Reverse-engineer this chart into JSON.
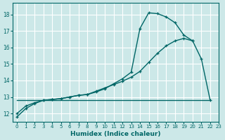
{
  "xlabel": "Humidex (Indice chaleur)",
  "background_color": "#cce8e8",
  "grid_color": "#ffffff",
  "line_color": "#006666",
  "xlim": [
    -0.5,
    23
  ],
  "ylim": [
    11.5,
    18.7
  ],
  "xticks": [
    0,
    1,
    2,
    3,
    4,
    5,
    6,
    7,
    8,
    9,
    10,
    11,
    12,
    13,
    14,
    15,
    16,
    17,
    18,
    19,
    20,
    21,
    22,
    23
  ],
  "yticks": [
    12,
    13,
    14,
    15,
    16,
    17,
    18
  ],
  "series1_x": [
    0,
    1,
    2,
    3,
    4,
    5,
    6,
    7,
    8,
    9,
    10,
    11,
    12,
    13,
    14,
    15,
    16,
    17,
    18,
    19,
    20,
    21,
    22
  ],
  "series1_y": [
    11.8,
    12.3,
    12.6,
    12.8,
    12.85,
    12.9,
    13.0,
    13.1,
    13.15,
    13.3,
    13.5,
    13.8,
    14.1,
    14.5,
    17.15,
    18.1,
    18.05,
    17.85,
    17.5,
    16.75,
    16.4,
    15.3,
    12.8
  ],
  "series2_x": [
    0,
    1,
    2,
    3,
    4,
    5,
    6,
    7,
    8,
    9,
    10,
    11,
    12,
    13,
    14,
    15,
    16,
    17,
    18,
    19,
    20
  ],
  "series2_y": [
    12.0,
    12.45,
    12.65,
    12.8,
    12.85,
    12.9,
    13.0,
    13.1,
    13.15,
    13.35,
    13.55,
    13.75,
    13.95,
    14.2,
    14.55,
    15.1,
    15.65,
    16.1,
    16.4,
    16.55,
    16.4
  ],
  "series3_x": [
    0,
    22
  ],
  "series3_y": [
    12.8,
    12.8
  ]
}
